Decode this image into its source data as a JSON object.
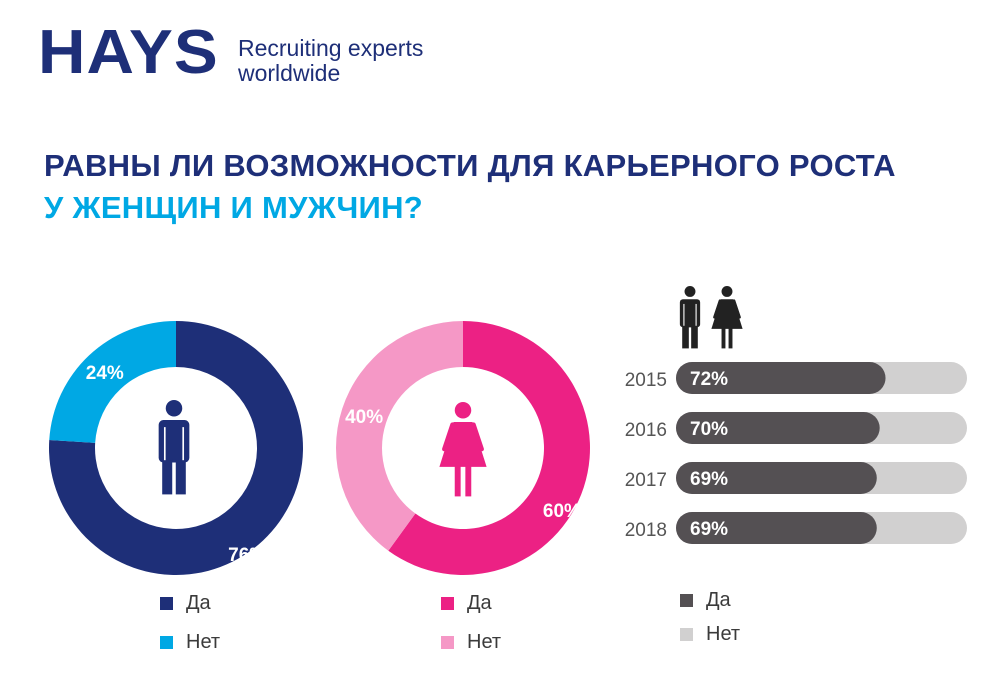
{
  "header": {
    "logo": "HAYS",
    "tagline_line1": "Recruiting experts",
    "tagline_line2": "worldwide"
  },
  "title": {
    "line1": "РАВНЫ ЛИ ВОЗМОЖНОСТИ ДЛЯ КАРЬЕРНОГО РОСТА",
    "line2": "У ЖЕНЩИН И МУЖЧИН?"
  },
  "colors": {
    "brand_navy": "#1e2f78",
    "accent_cyan": "#00a8e4",
    "pink_dark": "#ec2184",
    "pink_light": "#f598c6",
    "bar_dark": "#545053",
    "bar_light": "#d1d0d0",
    "year_text": "#555555"
  },
  "icons": {
    "men_chart_center": "male-icon",
    "women_chart_center": "female-icon",
    "bars_header": [
      "male-icon",
      "female-icon"
    ]
  },
  "chart_data": [
    {
      "type": "pie",
      "variant": "donut",
      "center_icon": "male-icon",
      "categories": [
        "Да",
        "Нет"
      ],
      "values": [
        76,
        24
      ],
      "labels": [
        "76%",
        "24%"
      ],
      "colors": [
        "#1e2f78",
        "#00a8e4"
      ],
      "legend": [
        {
          "label": "Да",
          "color": "#1e2f78"
        },
        {
          "label": "Нет",
          "color": "#00a8e4"
        }
      ]
    },
    {
      "type": "pie",
      "variant": "donut",
      "center_icon": "female-icon",
      "categories": [
        "Да",
        "Нет"
      ],
      "values": [
        60,
        40
      ],
      "labels": [
        "60%",
        "40%"
      ],
      "colors": [
        "#ec2184",
        "#f598c6"
      ],
      "legend": [
        {
          "label": "Да",
          "color": "#ec2184"
        },
        {
          "label": "Нет",
          "color": "#f598c6"
        }
      ]
    },
    {
      "type": "bar",
      "orientation": "horizontal",
      "categories": [
        "2015",
        "2016",
        "2017",
        "2018"
      ],
      "values": [
        72,
        70,
        69,
        69
      ],
      "labels": [
        "72%",
        "70%",
        "69%",
        "69%"
      ],
      "xlim": [
        0,
        100
      ],
      "colors": [
        "#545053",
        "#d1d0d0"
      ],
      "legend": [
        {
          "label": "Да",
          "color": "#545053"
        },
        {
          "label": "Нет",
          "color": "#d1d0d0"
        }
      ]
    }
  ]
}
